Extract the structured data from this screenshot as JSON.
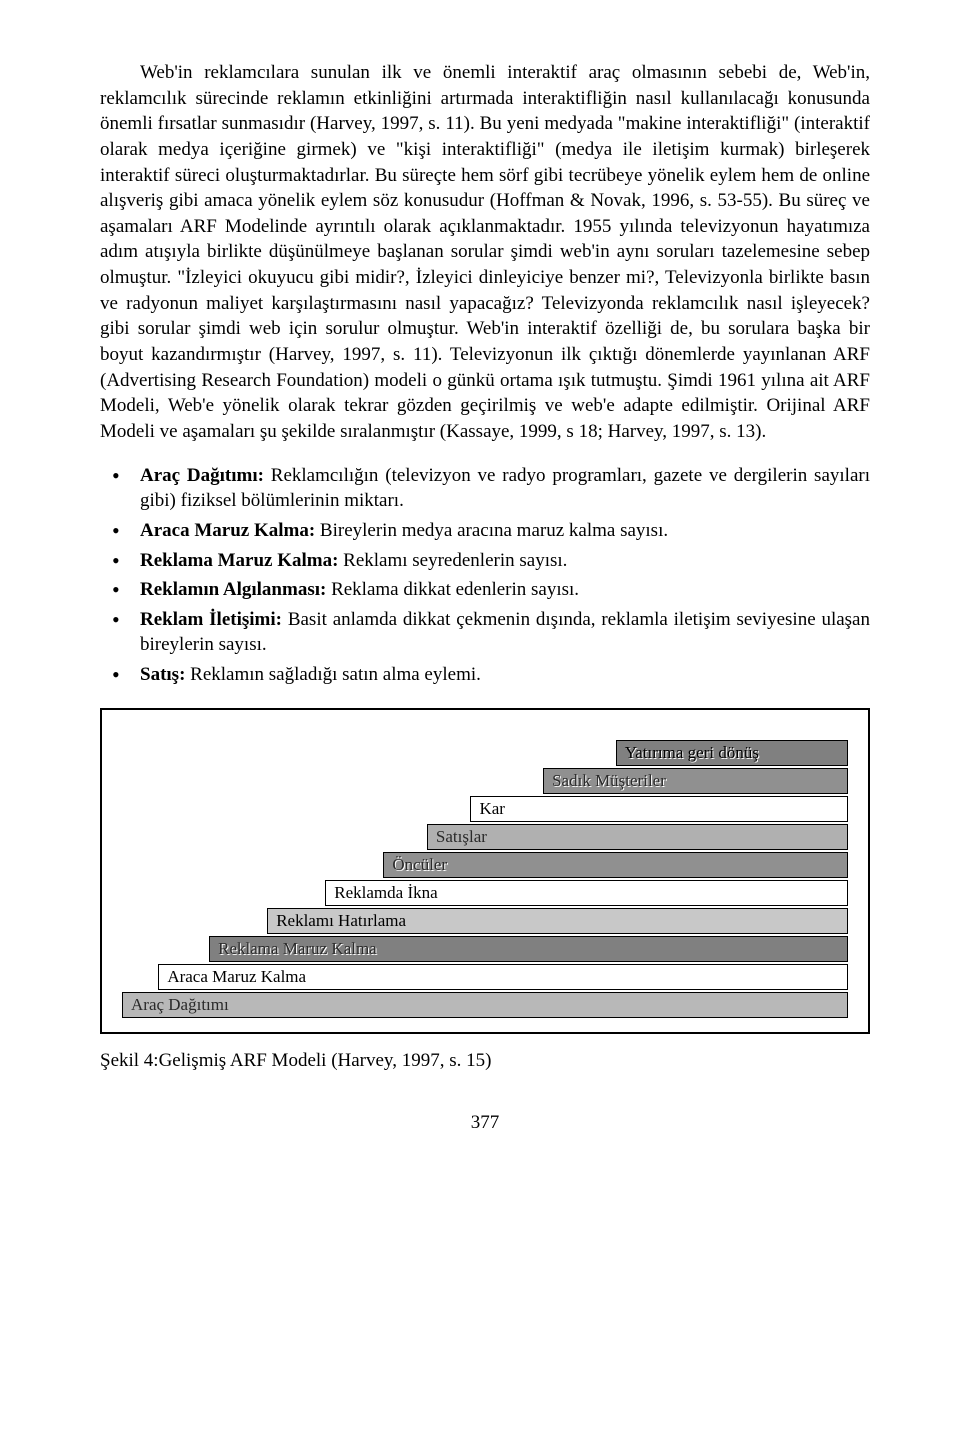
{
  "main_paragraph": "Web'in reklamcılara sunulan ilk ve önemli interaktif araç olmasının sebebi de, Web'in, reklamcılık sürecinde reklamın etkinliğini artırmada interaktifliğin nasıl kullanılacağı konusunda önemli fırsatlar sunmasıdır (Harvey, 1997, s. 11). Bu yeni medyada \"makine interaktifliği\" (interaktif olarak medya içeriğine girmek) ve \"kişi interaktifliği\" (medya ile iletişim kurmak) birleşerek interaktif süreci oluşturmaktadırlar. Bu süreçte hem sörf gibi tecrübeye yönelik eylem hem de online alışveriş gibi amaca yönelik eylem söz konusudur (Hoffman & Novak, 1996, s. 53-55). Bu süreç ve aşamaları ARF Modelinde ayrıntılı olarak açıklanmaktadır. 1955 yılında televizyonun hayatımıza adım atışıyla birlikte düşünülmeye başlanan sorular şimdi web'in aynı soruları tazelemesine sebep olmuştur. \"İzleyici okuyucu gibi midir?, İzleyici dinleyiciye benzer mi?, Televizyonla birlikte basın ve radyonun maliyet karşılaştırmasını nasıl yapacağız? Televizyonda reklamcılık nasıl işleyecek? gibi sorular şimdi web için sorulur olmuştur. Web'in interaktif özelliği de, bu sorulara başka bir boyut kazandırmıştır (Harvey, 1997, s. 11). Televizyonun ilk çıktığı dönemlerde yayınlanan ARF (Advertising Research Foundation) modeli o günkü ortama ışık tutmuştu. Şimdi 1961 yılına ait ARF Modeli, Web'e yönelik olarak tekrar gözden geçirilmiş ve web'e adapte edilmiştir. Orijinal ARF Modeli ve aşamaları şu şekilde sıralanmıştır (Kassaye, 1999, s 18; Harvey, 1997, s. 13).",
  "bullets": [
    {
      "bold": "Araç Dağıtımı:",
      "text": " Reklamcılığın (televizyon ve radyo programları, gazete ve dergilerin sayıları gibi) fiziksel bölümlerinin miktarı."
    },
    {
      "bold": "Araca Maruz Kalma:",
      "text": " Bireylerin medya aracına maruz kalma sayısı."
    },
    {
      "bold": "Reklama Maruz Kalma:",
      "text": " Reklamı seyredenlerin sayısı."
    },
    {
      "bold": "Reklamın Algılanması:",
      "text": " Reklama dikkat edenlerin sayısı."
    },
    {
      "bold": "Reklam İletişimi:",
      "text": " Basit anlamda dikkat çekmenin dışında, reklamla iletişim seviyesine ulaşan bireylerin sayısı."
    },
    {
      "bold": "Satış:",
      "text": " Reklamın sağladığı satın alma eylemi."
    }
  ],
  "figure": {
    "type": "step-pyramid",
    "background_color": "#ffffff",
    "border_color": "#000000",
    "bars": [
      {
        "label": "Yatırıma geri dönüş",
        "width_percent": 32,
        "fill": "#808080",
        "text_color": "#000000",
        "shadow": true
      },
      {
        "label": "Sadık Müşteriler",
        "width_percent": 42,
        "fill": "#909090",
        "text_color": "#2a2a2a",
        "shadow": true
      },
      {
        "label": "Kar",
        "width_percent": 52,
        "fill": "#ffffff",
        "text_color": "#000000",
        "shadow": false
      },
      {
        "label": "Satışlar",
        "width_percent": 58,
        "fill": "#b0b0b0",
        "text_color": "#2a2a2a",
        "shadow": false
      },
      {
        "label": "Öncüler",
        "width_percent": 64,
        "fill": "#909090",
        "text_color": "#2a2a2a",
        "shadow": true
      },
      {
        "label": "Reklamda İkna",
        "width_percent": 72,
        "fill": "#ffffff",
        "text_color": "#000000",
        "shadow": false
      },
      {
        "label": "Reklamı Hatırlama",
        "width_percent": 80,
        "fill": "#c8c8c8",
        "text_color": "#000000",
        "shadow": false
      },
      {
        "label": "Reklama Maruz Kalma",
        "width_percent": 88,
        "fill": "#808080",
        "text_color": "#2a2a2a",
        "shadow": true
      },
      {
        "label": "Araca Maruz Kalma",
        "width_percent": 95,
        "fill": "#ffffff",
        "text_color": "#000000",
        "shadow": false
      },
      {
        "label": "Araç Dağıtımı",
        "width_percent": 100,
        "fill": "#b8b8b8",
        "text_color": "#2a2a2a",
        "shadow": false
      }
    ]
  },
  "figure_caption": "Şekil 4:Gelişmiş ARF Modeli (Harvey, 1997, s. 15)",
  "page_number": "377"
}
